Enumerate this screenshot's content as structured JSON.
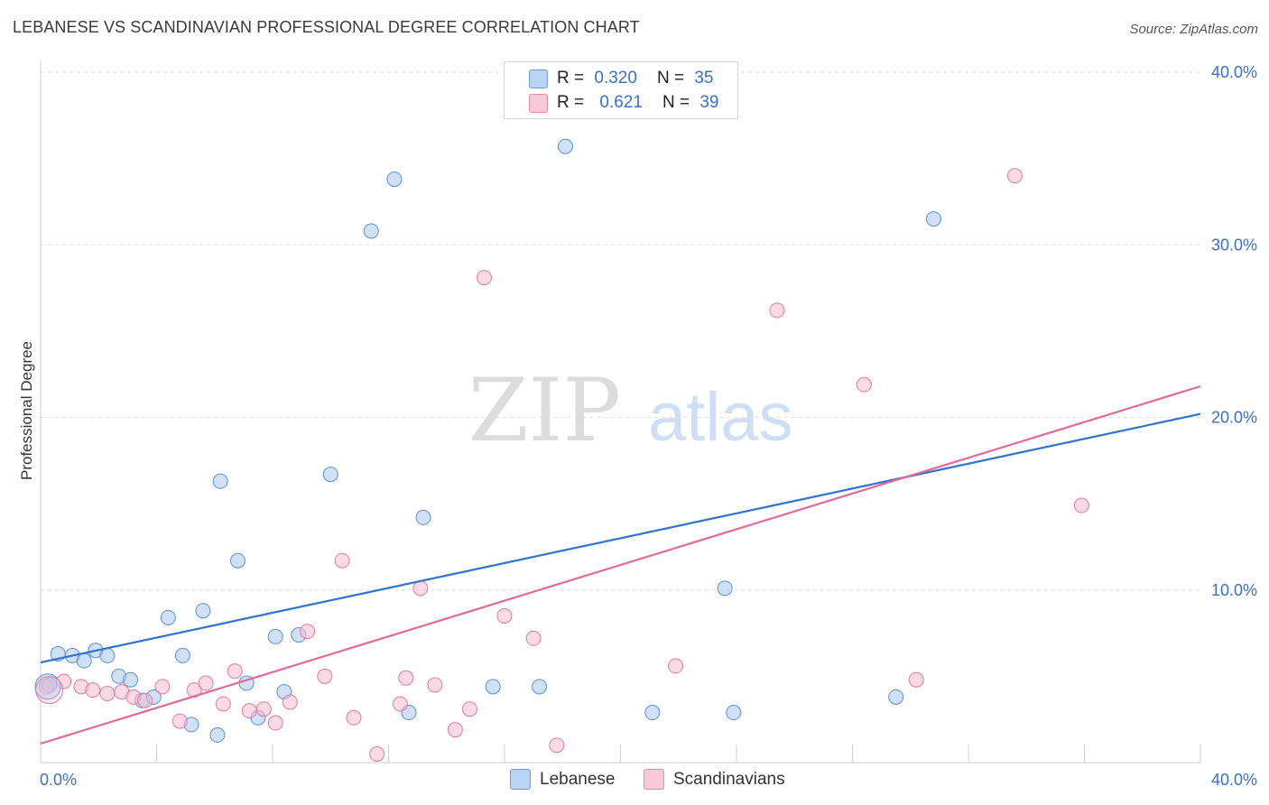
{
  "title": "LEBANESE VS SCANDINAVIAN PROFESSIONAL DEGREE CORRELATION CHART",
  "source": "Source: ZipAtlas.com",
  "watermark": {
    "part1": "ZIP",
    "part2": "atlas"
  },
  "legend_stats": [
    {
      "r_label": "R =",
      "r_value": "0.320",
      "n_label": "N =",
      "n_value": "35"
    },
    {
      "r_label": "R =",
      "r_value": "0.621",
      "n_label": "N =",
      "n_value": "39"
    }
  ],
  "chart_data": {
    "type": "scatter",
    "title": "LEBANESE VS SCANDINAVIAN PROFESSIONAL DEGREE CORRELATION CHART",
    "xlabel": "",
    "ylabel": "Professional Degree",
    "xlim": [
      0,
      40
    ],
    "ylim": [
      0,
      40
    ],
    "x_tick_labels": [
      "0.0%",
      "40.0%"
    ],
    "y_tick_labels": [
      "10.0%",
      "20.0%",
      "30.0%",
      "40.0%"
    ],
    "y_ticks": [
      10,
      20,
      30,
      40
    ],
    "grid": true,
    "legend_position": "top-center",
    "series": [
      {
        "name": "Lebanese",
        "color": "#a9c8ef",
        "stroke": "#5b8fd6",
        "line_color": "#2f72d0",
        "r": "0.320",
        "n": "35",
        "trend": [
          [
            0,
            5.8
          ],
          [
            40,
            20.2
          ]
        ],
        "points": [
          [
            0.3,
            4.5
          ],
          [
            0.6,
            6.3
          ],
          [
            1.1,
            6.2
          ],
          [
            1.5,
            5.9
          ],
          [
            1.9,
            6.5
          ],
          [
            2.3,
            6.2
          ],
          [
            2.7,
            5.0
          ],
          [
            3.1,
            4.8
          ],
          [
            3.5,
            3.6
          ],
          [
            3.9,
            3.8
          ],
          [
            4.4,
            8.4
          ],
          [
            4.9,
            6.2
          ],
          [
            5.2,
            2.2
          ],
          [
            5.6,
            8.8
          ],
          [
            6.1,
            1.6
          ],
          [
            6.2,
            16.3
          ],
          [
            6.8,
            11.7
          ],
          [
            7.1,
            4.6
          ],
          [
            7.5,
            2.6
          ],
          [
            8.1,
            7.3
          ],
          [
            8.4,
            4.1
          ],
          [
            8.9,
            7.4
          ],
          [
            10.0,
            16.7
          ],
          [
            11.4,
            30.8
          ],
          [
            12.2,
            33.8
          ],
          [
            12.7,
            2.9
          ],
          [
            13.2,
            14.2
          ],
          [
            15.6,
            4.4
          ],
          [
            17.2,
            4.4
          ],
          [
            18.1,
            35.7
          ],
          [
            21.1,
            2.9
          ],
          [
            23.6,
            10.1
          ],
          [
            23.9,
            2.9
          ],
          [
            29.5,
            3.8
          ],
          [
            30.8,
            31.5
          ]
        ]
      },
      {
        "name": "Scandinavians",
        "color": "#f7bcd0",
        "stroke": "#e07a9e",
        "line_color": "#e06a98",
        "r": "0.621",
        "n": "39",
        "trend": [
          [
            0,
            1.1
          ],
          [
            40,
            21.8
          ]
        ],
        "points": [
          [
            0.2,
            4.4
          ],
          [
            0.8,
            4.7
          ],
          [
            1.4,
            4.4
          ],
          [
            1.8,
            4.2
          ],
          [
            2.3,
            4.0
          ],
          [
            2.8,
            4.1
          ],
          [
            3.2,
            3.8
          ],
          [
            3.6,
            3.6
          ],
          [
            4.2,
            4.4
          ],
          [
            4.8,
            2.4
          ],
          [
            5.3,
            4.2
          ],
          [
            5.7,
            4.6
          ],
          [
            6.3,
            3.4
          ],
          [
            6.7,
            5.3
          ],
          [
            7.2,
            3.0
          ],
          [
            7.7,
            3.1
          ],
          [
            8.1,
            2.3
          ],
          [
            8.6,
            3.5
          ],
          [
            9.2,
            7.6
          ],
          [
            9.8,
            5.0
          ],
          [
            10.4,
            11.7
          ],
          [
            10.8,
            2.6
          ],
          [
            11.6,
            0.5
          ],
          [
            12.4,
            3.4
          ],
          [
            12.6,
            4.9
          ],
          [
            13.1,
            10.1
          ],
          [
            13.6,
            4.5
          ],
          [
            14.3,
            1.9
          ],
          [
            14.8,
            3.1
          ],
          [
            15.3,
            28.1
          ],
          [
            16.0,
            8.5
          ],
          [
            17.0,
            7.2
          ],
          [
            17.8,
            1.0
          ],
          [
            21.9,
            5.6
          ],
          [
            25.4,
            26.2
          ],
          [
            28.4,
            21.9
          ],
          [
            30.2,
            4.8
          ],
          [
            33.6,
            34.0
          ],
          [
            35.9,
            14.9
          ]
        ]
      }
    ]
  }
}
